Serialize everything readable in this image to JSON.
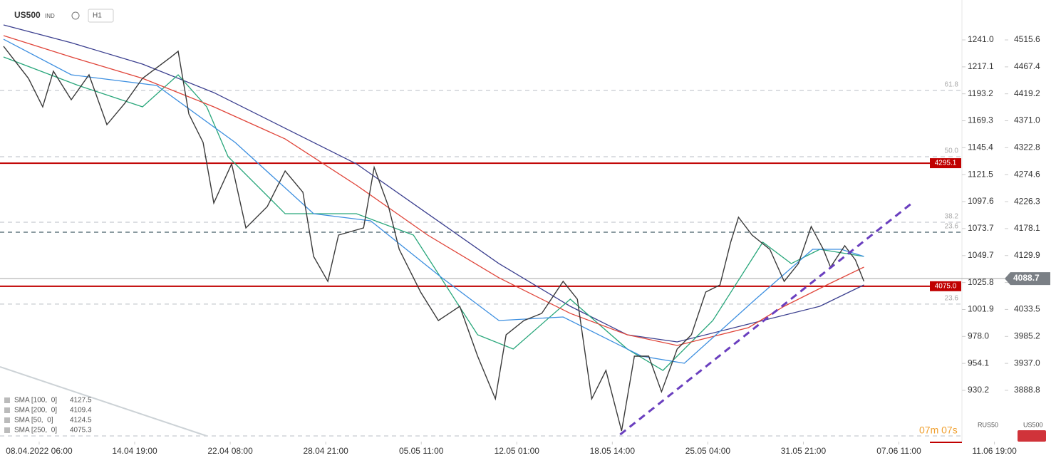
{
  "header": {
    "symbol": "US500",
    "market": "IND",
    "timeframe": "H1"
  },
  "chart_data": {
    "type": "line",
    "xlim": [
      -0.41,
      9.66
    ],
    "xticks": [
      {
        "value": 0,
        "label": "08.04.2022 06:00"
      },
      {
        "value": 1,
        "label": "14.04 19:00"
      },
      {
        "value": 2,
        "label": "22.04 08:00"
      },
      {
        "value": 3,
        "label": "28.04 21:00"
      },
      {
        "value": 4,
        "label": "05.05 11:00"
      },
      {
        "value": 5,
        "label": "12.05 01:00"
      },
      {
        "value": 6,
        "label": "18.05 14:00"
      },
      {
        "value": 7,
        "label": "25.05 04:00"
      },
      {
        "value": 8,
        "label": "31.05 21:00"
      },
      {
        "value": 9,
        "label": "07.06 11:00"
      },
      {
        "value": 10,
        "label": "11.06 19:00"
      }
    ],
    "ylim": [
      3797,
      4587
    ],
    "yticks": [
      4515.6,
      4467.4,
      4419.2,
      {
        "value": 4371,
        "label": "4371.0"
      },
      4322.8,
      4274.6,
      4226.3,
      4178.1,
      4129.9,
      4081.6,
      4033.5,
      3985.2,
      {
        "value": 3937,
        "label": "3937.0"
      },
      3888.8
    ],
    "y2lim": [
      884.7,
      1276.4
    ],
    "y2ticks": [
      {
        "value": 1241,
        "label": "1241.0"
      },
      1217.1,
      1193.2,
      1169.3,
      1145.4,
      1121.5,
      1097.6,
      1073.7,
      1049.7,
      1025.8,
      1001.9,
      {
        "value": 978,
        "label": "978.0"
      },
      954.1,
      930.2
    ],
    "series": [
      {
        "name": "US500",
        "color": "#3a3a3a",
        "x": [
          -0.373,
          -0.112,
          0.037,
          0.149,
          0.336,
          0.522,
          0.709,
          0.896,
          1.082,
          1.381,
          1.455,
          1.567,
          1.716,
          1.828,
          2.015,
          2.164,
          2.388,
          2.575,
          2.761,
          2.873,
          3.022,
          3.134,
          3.396,
          3.507,
          3.657,
          3.769,
          3.993,
          4.179,
          4.403,
          4.59,
          4.776,
          4.888,
          5.075,
          5.261,
          5.485,
          5.634,
          5.784,
          5.933,
          6.097,
          6.231,
          6.381,
          6.515,
          6.679,
          6.828,
          6.978,
          7.127,
          7.239,
          7.321,
          7.463,
          7.649,
          7.799,
          7.948,
          8.082,
          8.209,
          8.284,
          8.433,
          8.545,
          8.634
        ],
        "values": [
          4504.2,
          4446.8,
          4395.9,
          4459.6,
          4408.6,
          4453.2,
          4364.0,
          4402.2,
          4446.8,
          4485.1,
          4495.3,
          4383.1,
          4332.2,
          4223.8,
          4293.9,
          4179.3,
          4217.5,
          4281.2,
          4243.0,
          4128.3,
          4083.7,
          4166.5,
          4179.3,
          4287.6,
          4217.5,
          4141.0,
          4064.6,
          4013.6,
          4039.1,
          3949.9,
          3873.4,
          3988.1,
          4013.6,
          4026.4,
          4083.7,
          4051.8,
          3873.4,
          3924.4,
          3816.1,
          3949.9,
          3949.9,
          3886.2,
          3962.6,
          3988.1,
          4064.6,
          4077.3,
          4153.8,
          4198.4,
          4166.5,
          4141.0,
          4083.7,
          4115.5,
          4181.8,
          4141.0,
          4109.2,
          4147.4,
          4121.9,
          4083.7
        ]
      },
      {
        "name": "SMA [100,  0]",
        "last_value": 4127.5,
        "color": "#3d8fe0",
        "x": [
          -0.373,
          0.336,
          1.231,
          2.052,
          2.873,
          3.47,
          4.216,
          4.813,
          5.485,
          6.306,
          6.754,
          7.5,
          8.097,
          8.396,
          8.634
        ],
        "values": [
          4516.9,
          4453.2,
          4434.1,
          4332.2,
          4204.7,
          4192.0,
          4090.1,
          4013.6,
          4020.0,
          3949.9,
          3937.2,
          4051.8,
          4141.0,
          4141.0,
          4128.3
        ]
      },
      {
        "name": "SMA [200,  0]",
        "last_value": 4109.4,
        "color": "#e0453a",
        "x": [
          -0.373,
          0.336,
          1.082,
          1.828,
          2.575,
          3.321,
          4.067,
          4.813,
          5.56,
          6.157,
          6.679,
          7.425,
          7.799,
          8.246,
          8.634
        ],
        "values": [
          4523.3,
          4485.1,
          4446.8,
          4395.9,
          4338.5,
          4255.7,
          4166.5,
          4090.1,
          4026.4,
          3988.1,
          3969.0,
          4000.9,
          4039.1,
          4077.3,
          4109.2
        ]
      },
      {
        "name": "SMA [50,  0]",
        "last_value": 4124.5,
        "color": "#27a67a",
        "x": [
          -0.373,
          0.41,
          1.082,
          1.455,
          1.754,
          1.978,
          2.575,
          3.321,
          3.918,
          4.59,
          4.963,
          5.56,
          6.157,
          6.53,
          7.052,
          7.575,
          7.873,
          8.172,
          8.634
        ],
        "values": [
          4485.1,
          4434.1,
          4395.9,
          4453.2,
          4395.9,
          4306.7,
          4204.7,
          4204.7,
          4166.5,
          3988.1,
          3962.6,
          4051.8,
          3962.6,
          3924.4,
          4013.6,
          4153.8,
          4115.5,
          4141.0,
          4128.3
        ]
      },
      {
        "name": "SMA [250,  0]",
        "last_value": 4075.3,
        "color": "#3b3f8f",
        "x": [
          -0.373,
          0.336,
          1.082,
          1.828,
          2.575,
          3.321,
          4.067,
          4.813,
          5.56,
          6.157,
          6.679,
          7.425,
          8.172,
          8.634
        ],
        "values": [
          4542.4,
          4510.5,
          4472.3,
          4421.4,
          4357.6,
          4293.9,
          4204.7,
          4115.5,
          4039.1,
          3988.1,
          3975.4,
          4007.2,
          4039.1,
          4077.3
        ]
      }
    ],
    "levels": [
      {
        "value": 4295.1,
        "label": "4295.1",
        "color": "#c00000"
      },
      {
        "value": 4075,
        "label": "4075.0",
        "color": "#c00000"
      }
    ],
    "current_price": 4088.7,
    "fib_levels": [
      {
        "value": 4425.2,
        "label": "61.8"
      },
      {
        "value": 4306.7,
        "label": "50.0"
      },
      {
        "value": 4189.5,
        "label": "38.2"
      },
      {
        "value": 4171.6,
        "label": "23.6"
      },
      {
        "value": 4043.0,
        "label": "23.6"
      },
      {
        "value": 3807.2,
        "label": null
      }
    ],
    "trendline": {
      "x": [
        6.082,
        9.157
      ],
      "values": [
        3809.7,
        4226.4
      ],
      "color": "#6a3fbf"
    }
  },
  "footer": {
    "countdown": "07m 07s",
    "instruments": [
      "RUS50",
      "US500"
    ]
  }
}
